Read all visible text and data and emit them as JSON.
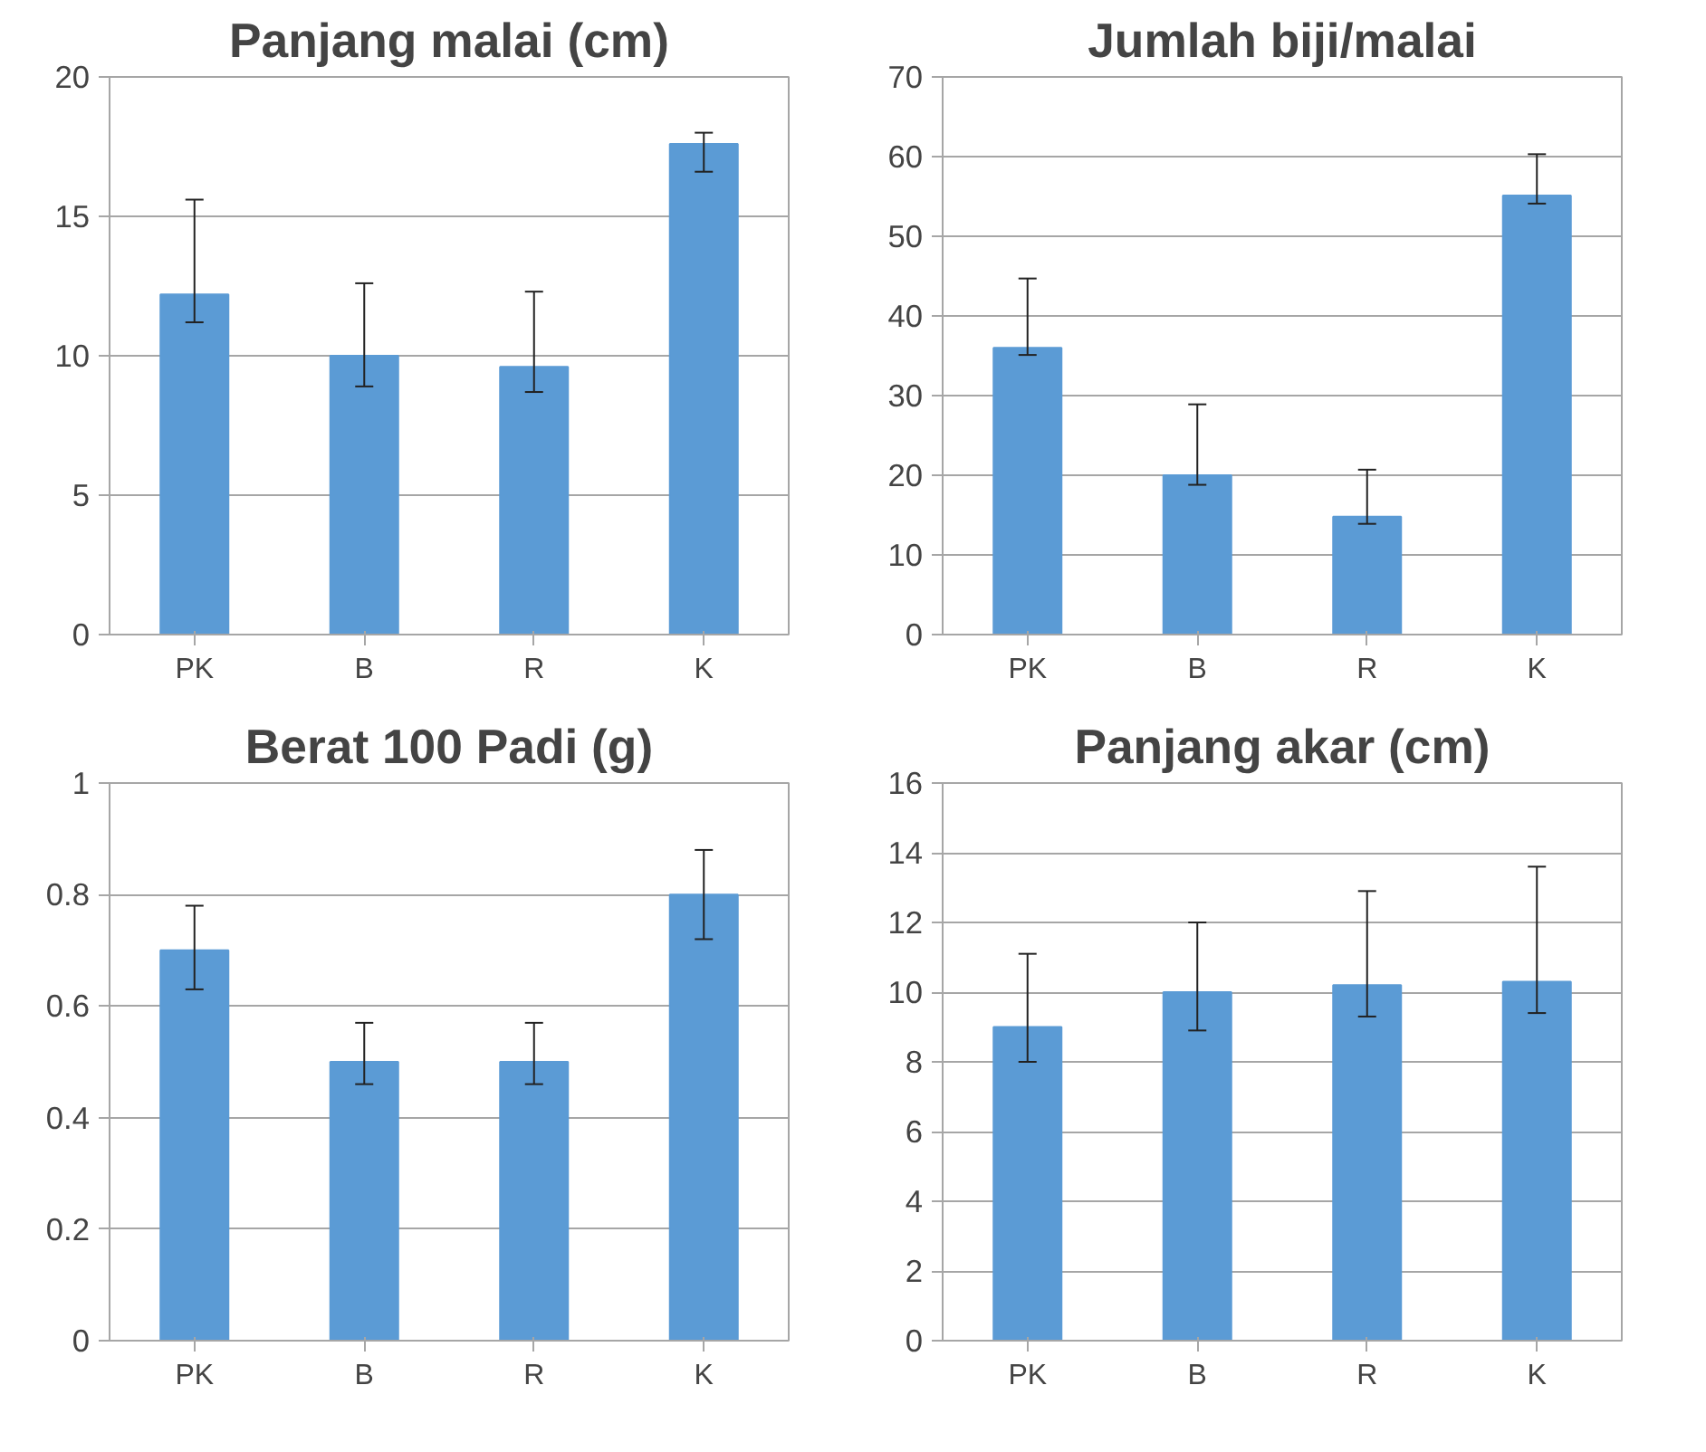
{
  "chart_data": [
    {
      "type": "bar",
      "title": "Panjang malai (cm)",
      "categories": [
        "PK",
        "B",
        "R",
        "K"
      ],
      "values": [
        12.2,
        10.0,
        9.6,
        17.6
      ],
      "errors": [
        [
          11.2,
          15.6
        ],
        [
          8.9,
          12.6
        ],
        [
          8.7,
          12.3
        ],
        [
          16.6,
          18.0
        ]
      ],
      "color": "#5b9bd5",
      "ylim": [
        0,
        20
      ],
      "yticks": [
        0,
        5,
        10,
        15,
        20
      ],
      "grid": "y",
      "legend": false
    },
    {
      "type": "bar",
      "title": "Jumlah biji/malai",
      "categories": [
        "PK",
        "B",
        "R",
        "K"
      ],
      "values": [
        36,
        20,
        14.8,
        55.1
      ],
      "errors": [
        [
          35.1,
          44.7
        ],
        [
          18.8,
          28.9
        ],
        [
          13.9,
          20.7
        ],
        [
          54.1,
          60.3
        ]
      ],
      "color": "#5b9bd5",
      "ylim": [
        0,
        70
      ],
      "yticks": [
        0,
        10,
        20,
        30,
        40,
        50,
        60,
        70
      ],
      "grid": "y",
      "legend": false
    },
    {
      "type": "bar",
      "title": "Berat 100 Padi (g)",
      "categories": [
        "PK",
        "B",
        "R",
        "K"
      ],
      "values": [
        0.7,
        0.5,
        0.5,
        0.8
      ],
      "errors": [
        [
          0.63,
          0.78
        ],
        [
          0.46,
          0.57
        ],
        [
          0.46,
          0.57
        ],
        [
          0.72,
          0.88
        ]
      ],
      "color": "#5b9bd5",
      "ylim": [
        0,
        1
      ],
      "yticks": [
        0,
        0.2,
        0.4,
        0.6,
        0.8,
        1
      ],
      "grid": "y",
      "legend": false
    },
    {
      "type": "bar",
      "title": "Panjang akar (cm)",
      "categories": [
        "PK",
        "B",
        "R",
        "K"
      ],
      "values": [
        9.0,
        10.0,
        10.2,
        10.3
      ],
      "errors": [
        [
          8.0,
          11.1
        ],
        [
          8.9,
          12.0
        ],
        [
          9.3,
          12.9
        ],
        [
          9.4,
          13.6
        ]
      ],
      "color": "#5b9bd5",
      "ylim": [
        0,
        16
      ],
      "yticks": [
        0,
        2,
        4,
        6,
        8,
        10,
        12,
        14,
        16
      ],
      "grid": "y",
      "legend": false
    }
  ]
}
